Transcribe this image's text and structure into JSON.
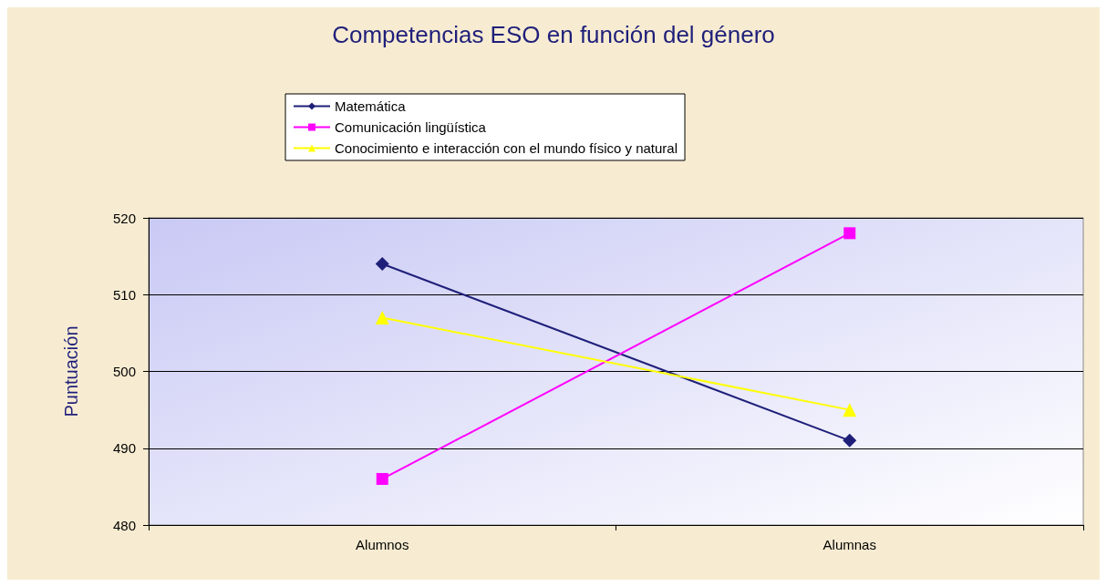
{
  "chart_data": {
    "type": "line",
    "title": "Competencias ESO en función del género",
    "ylabel": "Puntuación",
    "categories": [
      "Alumnos",
      "Alumnas"
    ],
    "series": [
      {
        "name": "Matemática",
        "color": "#1f1f7a",
        "marker": "diamond",
        "values": [
          514,
          491
        ]
      },
      {
        "name": "Comunicación lingüística",
        "color": "#ff00ff",
        "marker": "square",
        "values": [
          486,
          518
        ]
      },
      {
        "name": "Conocimiento e interacción con el mundo físico y natural",
        "color": "#ffff00",
        "marker": "triangle",
        "values": [
          507,
          495
        ]
      }
    ],
    "ylim": [
      480,
      520
    ],
    "yticks": [
      480,
      490,
      500,
      510,
      520
    ],
    "grid": "y",
    "legend": "top",
    "line_style": "solid"
  }
}
